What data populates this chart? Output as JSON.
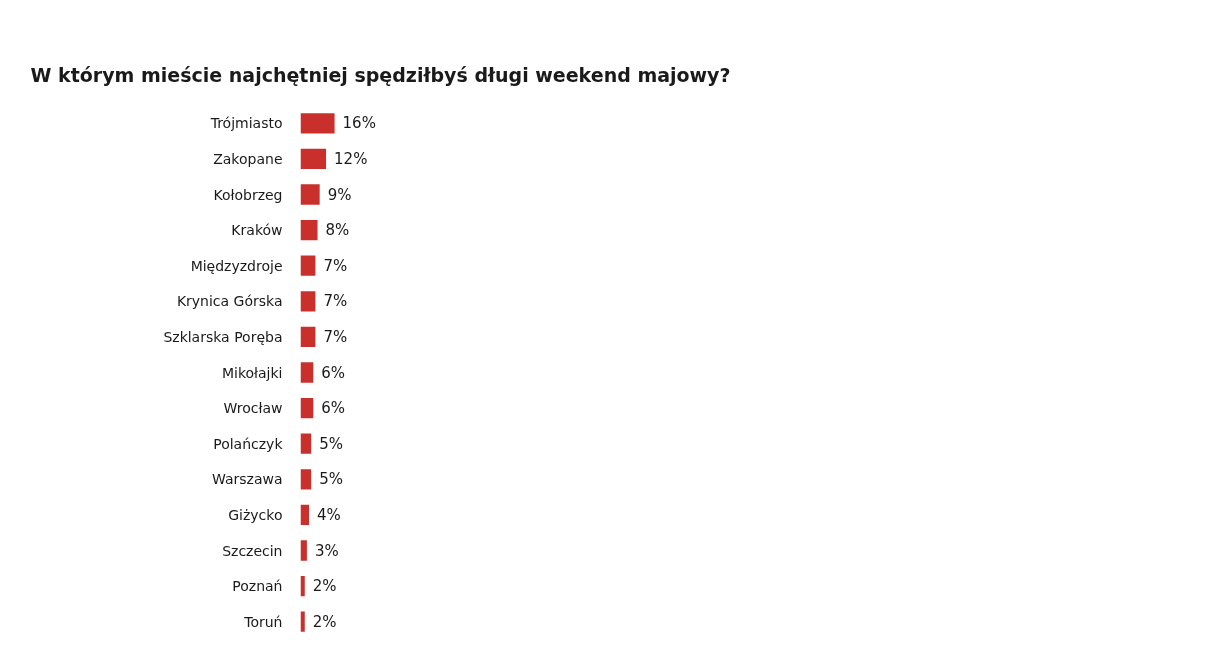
{
  "chart_data": {
    "type": "bar",
    "orientation": "horizontal",
    "title": "W którym mieście najchętniej spędziłbyś długi weekend majowy?",
    "categories": [
      "Trójmiasto",
      "Zakopane",
      "Kołobrzeg",
      "Kraków",
      "Międzyzdroje",
      "Krynica Górska",
      "Szklarska Poręba",
      "Mikołajki",
      "Wrocław",
      "Polańczyk",
      "Warszawa",
      "Giżycko",
      "Szczecin",
      "Poznań",
      "Toruń"
    ],
    "values": [
      16,
      12,
      9,
      8,
      7,
      7,
      7,
      6,
      6,
      5,
      5,
      4,
      3,
      2,
      2
    ],
    "value_labels": [
      "16%",
      "12%",
      "9%",
      "8%",
      "7%",
      "7%",
      "7%",
      "6%",
      "6%",
      "5%",
      "5%",
      "4%",
      "3%",
      "2%",
      "2%"
    ],
    "color": "#c9302c",
    "tick_labels": "y",
    "grid": false
  }
}
